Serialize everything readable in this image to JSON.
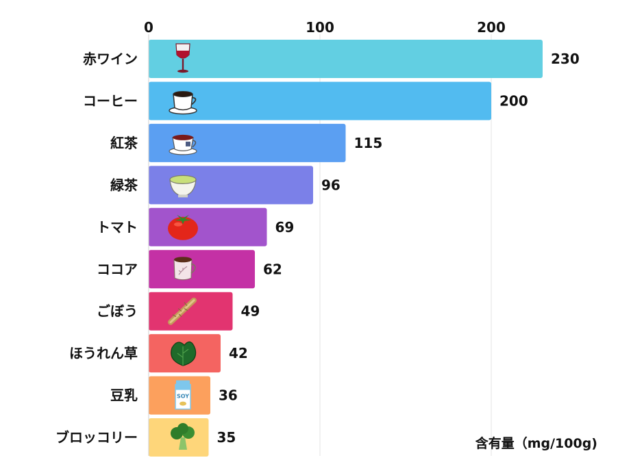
{
  "chart_data": {
    "type": "bar",
    "orientation": "horizontal",
    "title": "",
    "xlabel": "含有量（mg/100g)",
    "ylabel": "",
    "xlim": [
      0,
      240
    ],
    "x_ticks": [
      0,
      100,
      200
    ],
    "grid": true,
    "categories": [
      "赤ワイン",
      "コーヒー",
      "紅茶",
      "緑茶",
      "トマト",
      "ココア",
      "ごぼう",
      "ほうれん草",
      "豆乳",
      "ブロッコリー"
    ],
    "values": [
      230,
      200,
      115,
      96,
      69,
      62,
      49,
      42,
      36,
      35
    ],
    "icons": [
      "wine-glass-icon",
      "coffee-cup-icon",
      "tea-cup-icon",
      "green-tea-bowl-icon",
      "tomato-icon",
      "cocoa-mug-icon",
      "burdock-root-icon",
      "spinach-icon",
      "soy-milk-carton-icon",
      "broccoli-icon"
    ],
    "colors": [
      "#62cfe2",
      "#52bbf0",
      "#5b9ff2",
      "#7b80e8",
      "#a254cc",
      "#c431a5",
      "#e23470",
      "#f46461",
      "#fca05d",
      "#fed67a"
    ]
  }
}
